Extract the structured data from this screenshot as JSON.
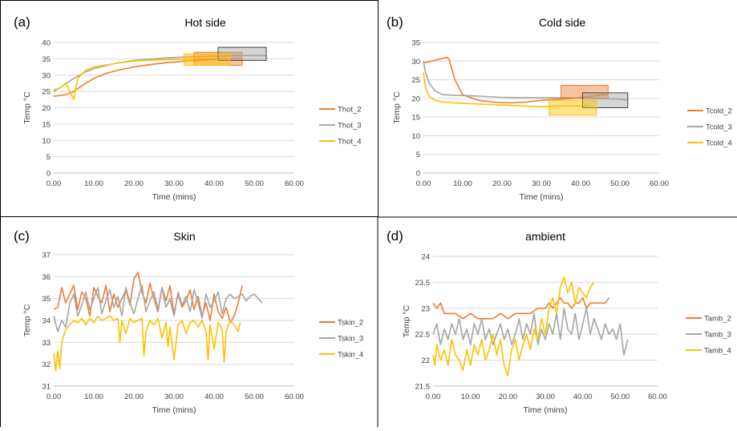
{
  "chart_data": [
    {
      "type": "line",
      "panel_label": "(a)",
      "title": "Hot side",
      "xlabel": "Time (mins)",
      "ylabel": "Temp °C",
      "xlim": [
        0,
        60
      ],
      "ylim": [
        0,
        40
      ],
      "xticks": [
        "0.00",
        "10.00",
        "20.00",
        "30.00",
        "40.00",
        "50.00",
        "60.00"
      ],
      "yticks": [
        "0",
        "5",
        "10",
        "15",
        "20",
        "25",
        "30",
        "35",
        "40"
      ],
      "legend_position": "right",
      "series": [
        {
          "name": "Thot_2",
          "color": "#ED7D31",
          "x": [
            0,
            2,
            3,
            5,
            8,
            10,
            13,
            16,
            20,
            24,
            28,
            32,
            36,
            40,
            44,
            47
          ],
          "y": [
            23.5,
            23.8,
            24,
            25,
            27.5,
            29,
            30.5,
            31.5,
            32.5,
            33.2,
            33.8,
            34.2,
            34.5,
            34.8,
            35,
            35
          ]
        },
        {
          "name": "Thot_3",
          "color": "#A5A5A5",
          "x": [
            0,
            2,
            5,
            8,
            10,
            15,
            20,
            25,
            30,
            35,
            40,
            45,
            50,
            53
          ],
          "y": [
            25,
            26.5,
            29,
            31,
            32,
            33.5,
            34.5,
            35,
            35.4,
            35.6,
            35.8,
            36,
            36,
            36
          ]
        },
        {
          "name": "Thot_4",
          "color": "#FFC000",
          "x": [
            0,
            1.5,
            3,
            4,
            5,
            5.5,
            6,
            8,
            10,
            15,
            20,
            25,
            30,
            35,
            40,
            42
          ],
          "y": [
            25.5,
            26,
            27.5,
            25,
            22.5,
            26,
            29,
            31.5,
            32.5,
            33.5,
            34.3,
            34.6,
            34.8,
            34.9,
            35,
            35
          ]
        }
      ],
      "boxes": [
        {
          "series": "Thot_2",
          "x": [
            35,
            47
          ],
          "y": [
            33,
            37
          ],
          "color": "#ED7D31"
        },
        {
          "series": "Thot_3",
          "x": [
            41,
            53
          ],
          "y": [
            34.5,
            38.5
          ],
          "color": "#A5A5A5"
        },
        {
          "series": "Thot_4",
          "x": [
            32.5,
            44
          ],
          "y": [
            33,
            36.5
          ],
          "color": "#FFC000"
        }
      ]
    },
    {
      "type": "line",
      "panel_label": "(b)",
      "title": "Cold side",
      "xlabel": "Time (mins)",
      "ylabel": "Temp °C",
      "xlim": [
        0,
        60
      ],
      "ylim": [
        0,
        35
      ],
      "xticks": [
        "0.00",
        "10.00",
        "20.00",
        "30.00",
        "40.00",
        "50.00",
        "60.00"
      ],
      "yticks": [
        "0",
        "5",
        "10",
        "15",
        "20",
        "25",
        "30",
        "35"
      ],
      "legend_position": "right",
      "series": [
        {
          "name": "Tcold_2",
          "color": "#ED7D31",
          "x": [
            0,
            2,
            4,
            6,
            6.5,
            8,
            10,
            14,
            18,
            22,
            26,
            30,
            34,
            38,
            42,
            46,
            47
          ],
          "y": [
            29.5,
            30,
            30.5,
            31,
            30.5,
            25,
            21,
            19.5,
            19,
            18.8,
            19,
            19.5,
            19.8,
            20,
            20.5,
            21,
            21
          ]
        },
        {
          "name": "Tcold_3",
          "color": "#A5A5A5",
          "x": [
            0,
            0.5,
            1.5,
            3,
            5,
            8,
            12,
            16,
            20,
            25,
            30,
            35,
            40,
            45,
            50,
            52
          ],
          "y": [
            30,
            27,
            24,
            22,
            21,
            20.8,
            20.7,
            20.5,
            20.3,
            20.2,
            20.2,
            20.2,
            20.1,
            20,
            19.8,
            19.5
          ]
        },
        {
          "name": "Tcold_4",
          "color": "#FFC000",
          "x": [
            0,
            0.5,
            1.5,
            3,
            5,
            8,
            12,
            16,
            20,
            25,
            30,
            35,
            40,
            42
          ],
          "y": [
            27,
            23,
            20.5,
            19.5,
            19,
            18.8,
            18.6,
            18.4,
            18.2,
            18,
            17.8,
            18,
            18,
            18
          ]
        }
      ],
      "boxes": [
        {
          "series": "Tcold_2",
          "x": [
            35,
            47
          ],
          "y": [
            20,
            23.5
          ],
          "color": "#ED7D31"
        },
        {
          "series": "Tcold_3",
          "x": [
            40.5,
            52
          ],
          "y": [
            17.5,
            21.5
          ],
          "color": "#A5A5A5"
        },
        {
          "series": "Tcold_4",
          "x": [
            32,
            44
          ],
          "y": [
            15.5,
            19.5
          ],
          "color": "#FFC000"
        }
      ]
    },
    {
      "type": "line",
      "panel_label": "(c)",
      "title": "Skin",
      "xlabel": "Time (mins)",
      "ylabel": "Temp °C",
      "xlim": [
        0,
        60
      ],
      "ylim": [
        31,
        37
      ],
      "xticks": [
        "0.00",
        "10.00",
        "20.00",
        "30.00",
        "40.00",
        "50.00",
        "60.00"
      ],
      "yticks": [
        "31",
        "32",
        "33",
        "34",
        "35",
        "36",
        "37"
      ],
      "legend_position": "right",
      "series": [
        {
          "name": "Tskin_2",
          "color": "#ED7D31",
          "x": [
            0,
            1,
            2,
            3,
            4,
            5,
            6,
            7,
            8,
            9,
            10,
            11,
            12,
            13,
            14,
            15,
            16,
            17,
            18,
            19,
            20,
            21,
            22,
            23,
            24,
            25,
            26,
            27,
            28,
            29,
            30,
            31,
            32,
            33,
            34,
            35,
            36,
            37,
            38,
            39,
            40,
            41,
            42,
            43,
            44,
            45,
            46,
            47
          ],
          "y": [
            34.5,
            34.6,
            35.5,
            34.8,
            35.2,
            35.6,
            34.5,
            35.3,
            35.0,
            34.2,
            35.5,
            35.1,
            34.8,
            35.6,
            34.4,
            35.2,
            34.6,
            35.0,
            35.4,
            34.7,
            35.9,
            36.2,
            35.3,
            34.8,
            35.7,
            35.0,
            34.4,
            35.5,
            34.9,
            35.6,
            34.3,
            35.2,
            34.6,
            34.9,
            35.4,
            34.5,
            35.1,
            34.2,
            34.8,
            34.0,
            35.2,
            34.4,
            34.1,
            34.6,
            33.9,
            34.2,
            34.8,
            35.6
          ]
        },
        {
          "name": "Tskin_3",
          "color": "#A5A5A5",
          "x": [
            0,
            1,
            2,
            3,
            4,
            5,
            6,
            7,
            8,
            9,
            10,
            11,
            12,
            13,
            14,
            15,
            16,
            17,
            18,
            19,
            20,
            21,
            22,
            23,
            24,
            25,
            26,
            27,
            28,
            29,
            30,
            31,
            32,
            33,
            34,
            35,
            36,
            37,
            38,
            39,
            40,
            41,
            42,
            43,
            44,
            45,
            46,
            47,
            48,
            49,
            50,
            51,
            52
          ],
          "y": [
            34.2,
            33.5,
            34.0,
            33.7,
            34.8,
            35.2,
            34.2,
            34.7,
            35.3,
            34.5,
            35.0,
            35.5,
            34.3,
            34.9,
            35.4,
            34.6,
            35.1,
            34.2,
            35.5,
            34.8,
            34.3,
            35.0,
            35.6,
            34.4,
            34.9,
            35.3,
            34.5,
            35.5,
            34.6,
            35.0,
            34.2,
            35.3,
            34.7,
            35.1,
            34.4,
            35.4,
            34.8,
            34.1,
            35.2,
            34.6,
            34.9,
            35.3,
            34.3,
            35.0,
            35.2,
            35.0,
            35.1,
            35.2,
            34.9,
            35.1,
            35.2,
            35.0,
            34.8
          ]
        },
        {
          "name": "Tskin_4",
          "color": "#FFC000",
          "x": [
            0,
            0.5,
            1,
            1.5,
            2,
            3,
            4,
            5,
            6,
            7,
            8,
            9,
            10,
            11,
            12,
            13,
            14,
            15,
            16,
            16.5,
            17,
            18,
            19,
            20,
            21,
            22,
            22.5,
            23,
            24,
            25,
            26,
            27,
            28,
            28.5,
            29,
            30,
            31,
            32,
            33,
            34,
            35,
            36,
            37,
            38,
            38.5,
            39,
            40,
            41,
            42,
            42.5,
            43,
            44,
            45,
            46,
            46.5
          ],
          "y": [
            32.5,
            31.7,
            32.6,
            31.8,
            33.0,
            33.6,
            33.8,
            34.0,
            33.9,
            34.1,
            33.8,
            34.1,
            33.9,
            34.2,
            34.0,
            34.1,
            34.2,
            34.0,
            34.1,
            33.0,
            34.0,
            33.4,
            34.1,
            33.9,
            34.0,
            34.1,
            32.4,
            33.5,
            34.0,
            33.8,
            34.1,
            33.2,
            33.9,
            32.8,
            33.7,
            32.2,
            33.8,
            34.0,
            33.4,
            33.9,
            34.0,
            33.7,
            34.0,
            33.5,
            32.2,
            33.8,
            32.7,
            33.9,
            33.6,
            32.1,
            33.5,
            34.0,
            33.8,
            33.5,
            33.9
          ]
        }
      ]
    },
    {
      "type": "line",
      "panel_label": "(d)",
      "title": "ambient",
      "xlabel": "Time (mins)",
      "ylabel": "Temp °C",
      "xlim": [
        0,
        60
      ],
      "ylim": [
        21.5,
        24
      ],
      "xticks": [
        "0.00",
        "10.00",
        "20.00",
        "30.00",
        "40.00",
        "50.00",
        "60.00"
      ],
      "yticks": [
        "21.5",
        "22",
        "22.5",
        "23",
        "23.5",
        "24"
      ],
      "legend_position": "right",
      "series": [
        {
          "name": "Tamb_2",
          "color": "#ED7D31",
          "x": [
            0,
            1,
            2,
            3,
            4,
            6,
            8,
            10,
            12,
            14,
            16,
            18,
            20,
            22,
            24,
            26,
            28,
            30,
            31,
            32,
            33,
            34,
            35,
            36,
            37,
            38,
            39,
            40,
            41,
            42,
            43,
            44,
            45,
            46,
            47
          ],
          "y": [
            23.1,
            23.0,
            23.1,
            22.9,
            22.9,
            22.9,
            22.8,
            22.9,
            22.8,
            22.8,
            22.8,
            22.9,
            22.8,
            22.9,
            22.9,
            22.9,
            23.0,
            23.0,
            23.1,
            23.0,
            23.1,
            23.2,
            23.1,
            23.1,
            23.0,
            23.1,
            23.1,
            23.2,
            23.0,
            23.1,
            23.1,
            23.1,
            23.1,
            23.1,
            23.2
          ]
        },
        {
          "name": "Tamb_3",
          "color": "#A5A5A5",
          "x": [
            0,
            1,
            2,
            3,
            4,
            5,
            6,
            7,
            8,
            9,
            10,
            11,
            12,
            13,
            14,
            15,
            16,
            17,
            18,
            19,
            20,
            21,
            22,
            23,
            24,
            25,
            26,
            27,
            28,
            29,
            30,
            31,
            32,
            33,
            34,
            35,
            36,
            37,
            38,
            39,
            40,
            41,
            42,
            43,
            44,
            45,
            46,
            47,
            48,
            49,
            50,
            51,
            52
          ],
          "y": [
            22.5,
            22.7,
            22.3,
            22.6,
            22.4,
            22.7,
            22.5,
            22.8,
            22.4,
            22.6,
            22.3,
            22.7,
            22.5,
            22.8,
            22.4,
            22.6,
            22.3,
            22.5,
            22.7,
            22.4,
            22.6,
            22.3,
            22.5,
            22.8,
            22.4,
            22.7,
            22.5,
            22.9,
            22.3,
            22.6,
            22.4,
            22.7,
            22.5,
            22.9,
            22.4,
            23.0,
            22.6,
            22.5,
            22.9,
            22.4,
            22.7,
            23.0,
            22.5,
            22.8,
            22.6,
            22.4,
            22.7,
            22.5,
            22.6,
            22.4,
            22.7,
            22.1,
            22.4
          ]
        },
        {
          "name": "Tamb_4",
          "color": "#FFC000",
          "x": [
            0,
            0.5,
            1,
            2,
            3,
            4,
            5,
            6,
            7,
            8,
            9,
            10,
            11,
            12,
            13,
            14,
            15,
            16,
            17,
            18,
            19,
            20,
            21,
            22,
            23,
            24,
            25,
            26,
            27,
            28,
            29,
            30,
            31,
            32,
            33,
            34,
            35,
            36,
            37,
            38,
            39,
            40,
            41,
            42,
            43
          ],
          "y": [
            22.1,
            21.9,
            22.3,
            22.0,
            22.2,
            21.9,
            22.4,
            22.1,
            22.0,
            21.8,
            22.2,
            21.9,
            22.3,
            22.1,
            22.4,
            22.0,
            22.2,
            22.5,
            22.1,
            22.4,
            21.9,
            21.7,
            22.2,
            22.4,
            22.0,
            22.3,
            22.5,
            22.2,
            22.6,
            22.4,
            22.8,
            22.5,
            23.0,
            23.2,
            22.9,
            23.4,
            23.6,
            23.3,
            23.5,
            23.1,
            23.4,
            23.3,
            23.2,
            23.4,
            23.5
          ]
        }
      ]
    }
  ]
}
